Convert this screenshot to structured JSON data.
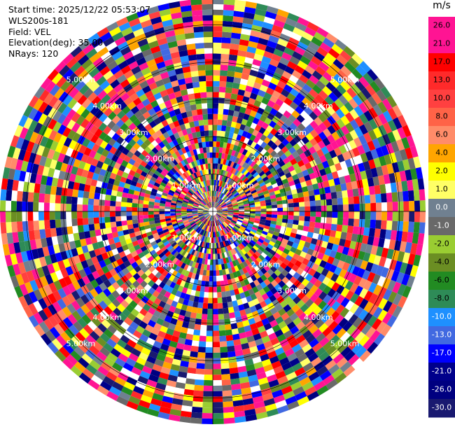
{
  "info": {
    "start_time": "Start time: 2025/12/22 05:53:07",
    "station": "WLS200s-181",
    "field": "Field: VEL",
    "elevation": "Elevation(deg): 35.00",
    "nrays": "NRays: 120"
  },
  "chart_data": {
    "type": "ppi",
    "field": "VEL",
    "units": "m/s",
    "nrays": 120,
    "range_rings_km": [
      1.0,
      2.0,
      3.0,
      4.0,
      5.0
    ],
    "range_labels": [
      "1.00km",
      "2.00km",
      "3.00km",
      "4.00km",
      "5.00km"
    ],
    "colorbar": {
      "label": "m/s",
      "ticks": [
        "26.0",
        "21.0",
        "17.0",
        "13.0",
        "10.0",
        "8.0",
        "6.0",
        "4.0",
        "2.0",
        "1.0",
        "0.0",
        "-1.0",
        "-2.0",
        "-4.0",
        "-6.0",
        "-8.0",
        "-10.0",
        "-13.0",
        "-17.0",
        "-21.0",
        "-26.0",
        "-30.0"
      ],
      "colors": [
        "#ff1493",
        "#ff1493",
        "#ff0000",
        "#ff2a2a",
        "#ff4040",
        "#ff6347",
        "#ff8c69",
        "#ffa500",
        "#ffff00",
        "#ffff66",
        "#708090",
        "#696969",
        "#9acd32",
        "#6b8e23",
        "#228b22",
        "#2e8b57",
        "#1e90ff",
        "#4169e1",
        "#0000ff",
        "#00008b",
        "#000080",
        "#191970"
      ]
    }
  }
}
